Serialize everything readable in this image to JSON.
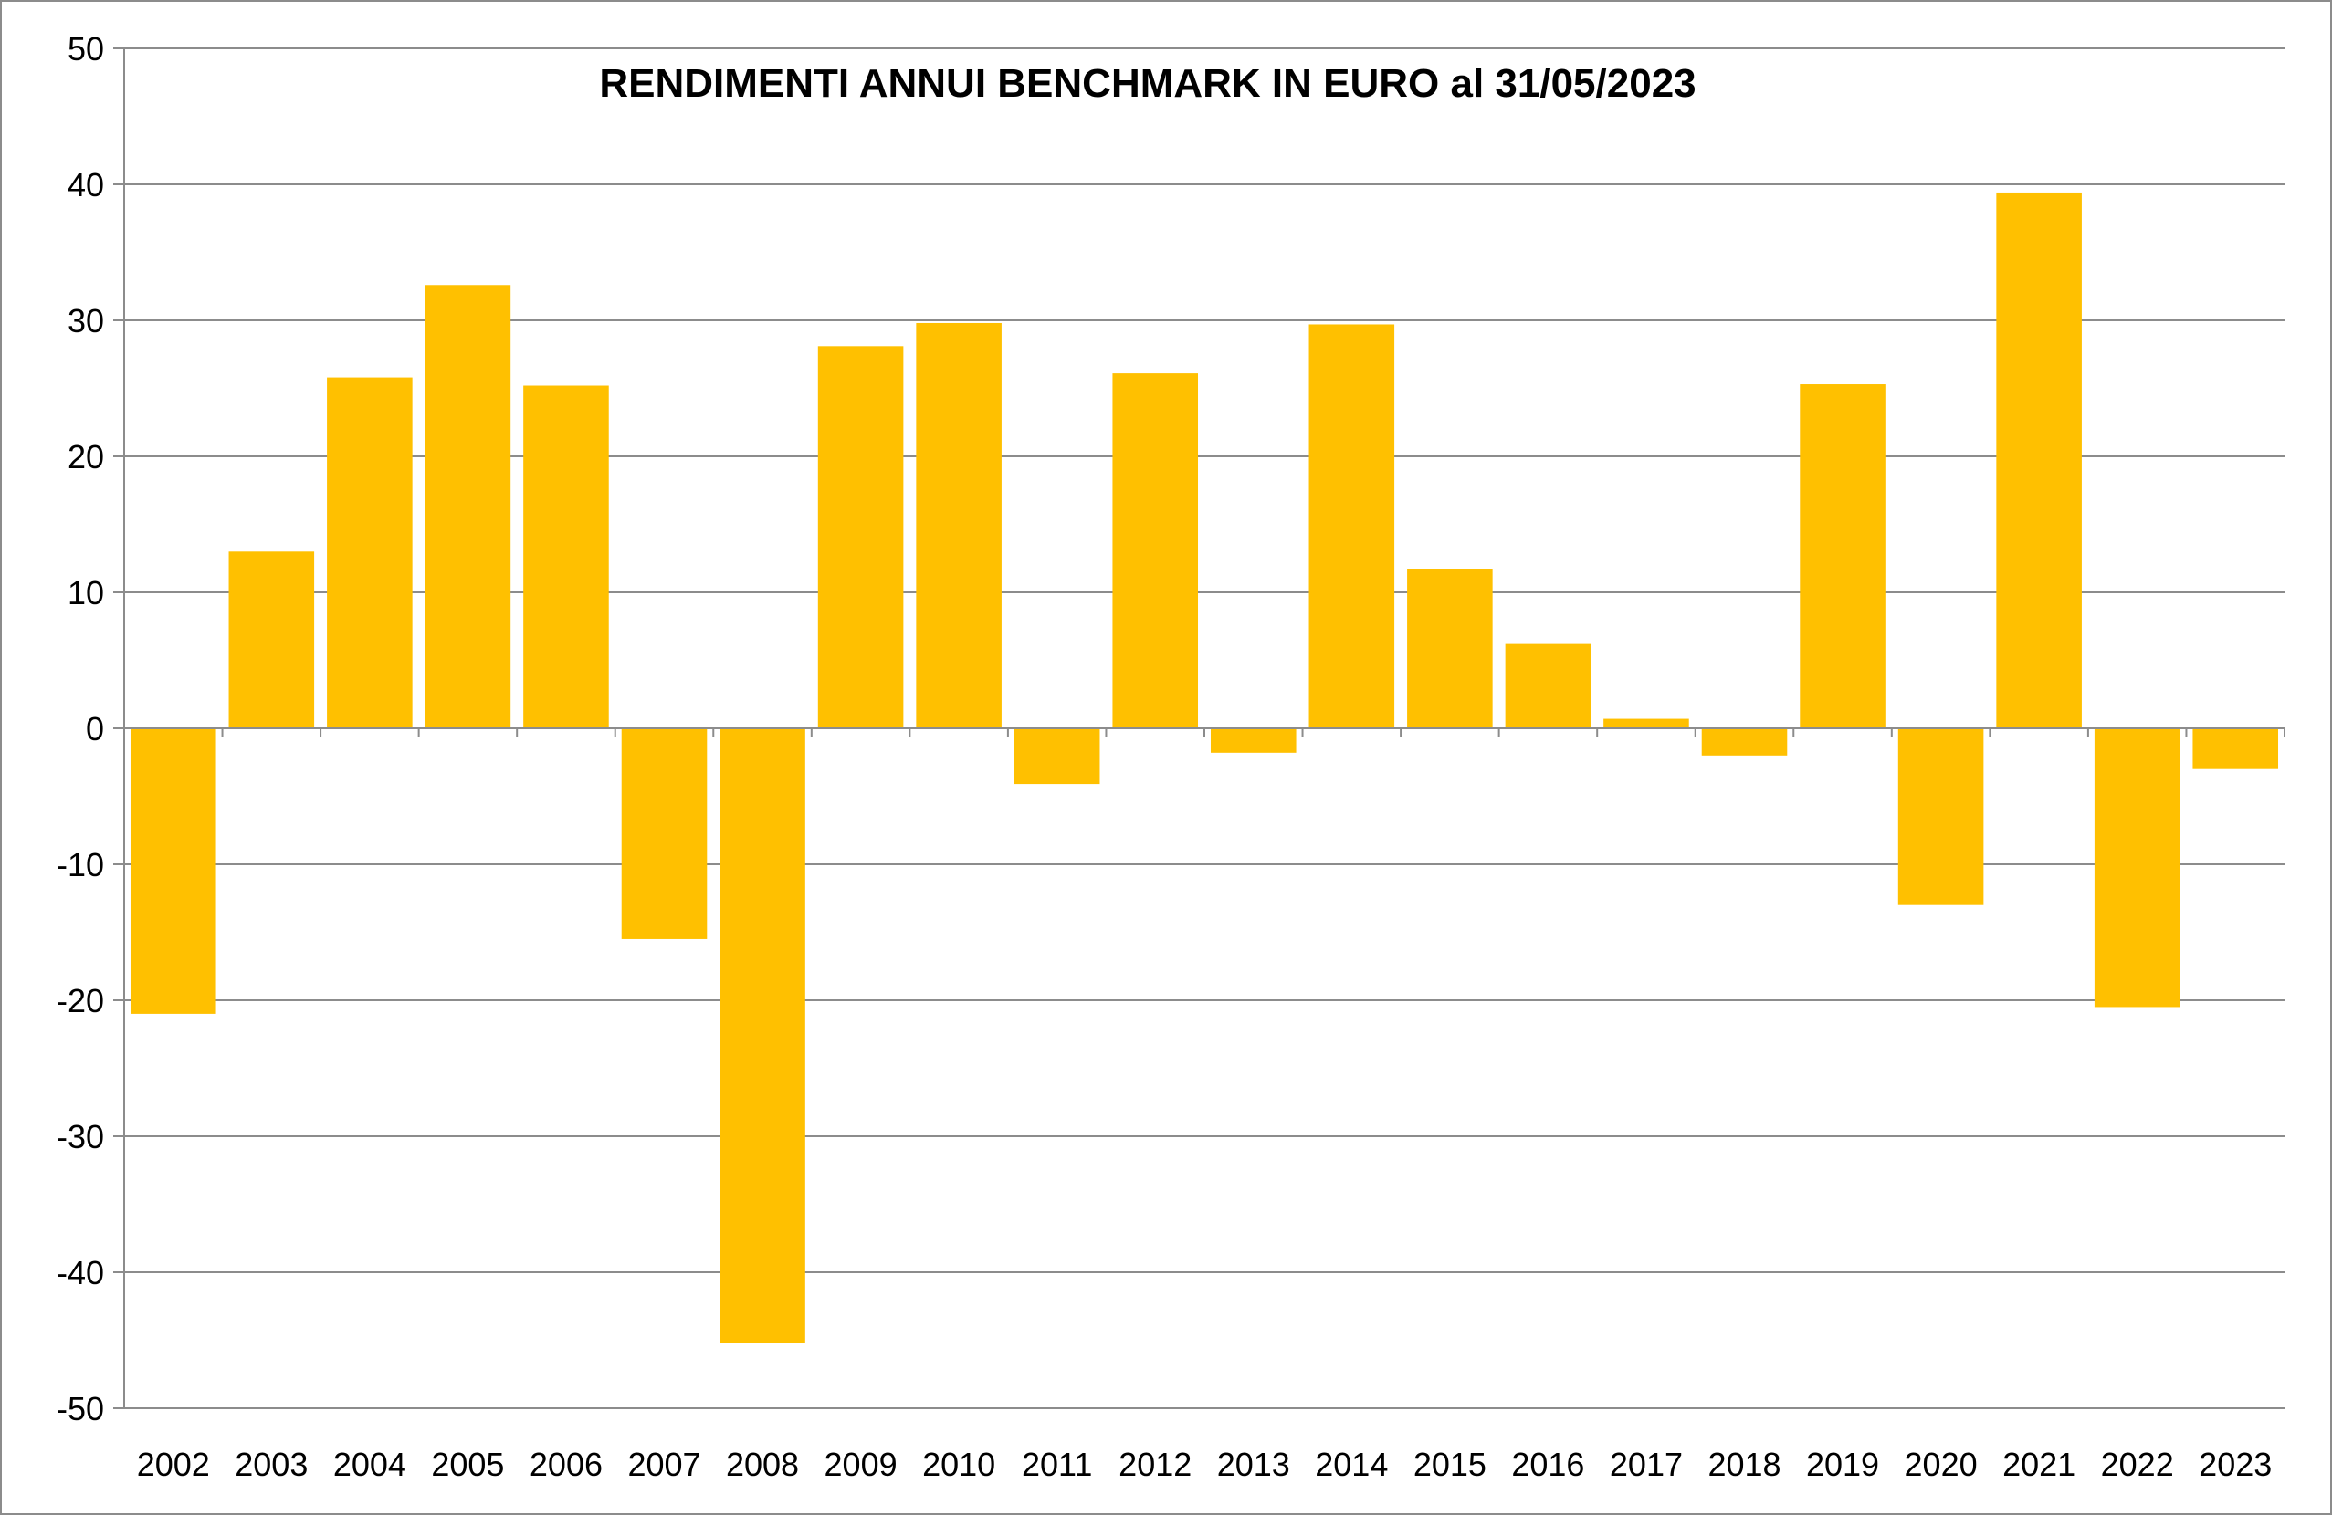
{
  "chart_data": {
    "type": "bar",
    "title": "RENDIMENTI ANNUI BENCHMARK IN EURO al 31/05/2023",
    "xlabel": "",
    "ylabel": "",
    "ylim": [
      -50,
      50
    ],
    "yticks": [
      50,
      40,
      30,
      20,
      10,
      0,
      -10,
      -20,
      -30,
      -40,
      -50
    ],
    "grid": true,
    "bar_color": "#FFC000",
    "categories": [
      "2002",
      "2003",
      "2004",
      "2005",
      "2006",
      "2007",
      "2008",
      "2009",
      "2010",
      "2011",
      "2012",
      "2013",
      "2014",
      "2015",
      "2016",
      "2017",
      "2018",
      "2019",
      "2020",
      "2021",
      "2022",
      "2023"
    ],
    "values": [
      -21.0,
      13.0,
      25.8,
      32.6,
      25.2,
      -15.5,
      -45.2,
      28.1,
      29.8,
      -4.1,
      26.1,
      -1.8,
      29.7,
      11.7,
      6.2,
      0.7,
      -2.0,
      25.3,
      -13.0,
      39.4,
      -20.5,
      -3.0
    ]
  }
}
